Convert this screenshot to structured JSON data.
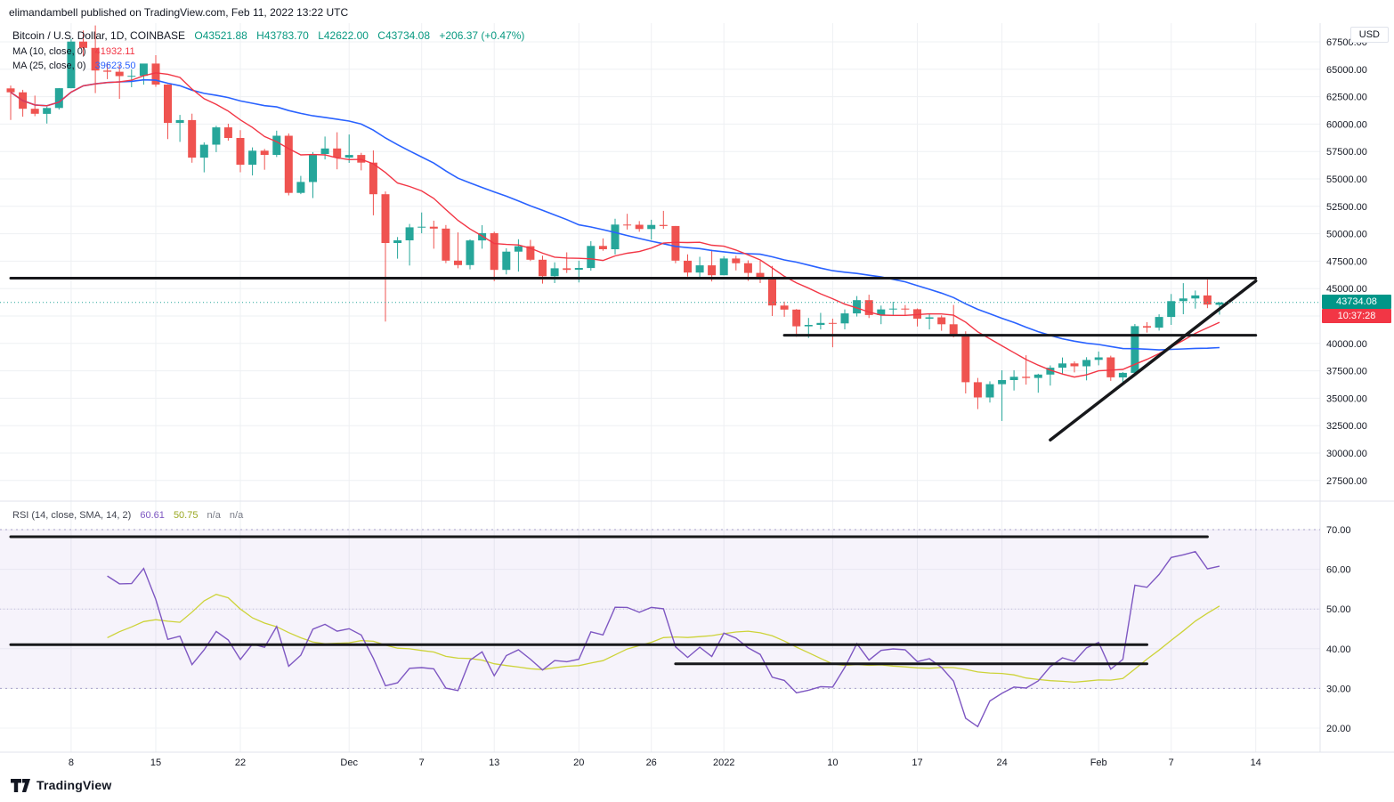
{
  "header": {
    "text": "elimandambell published on TradingView.com, Feb 11, 2022 13:22 UTC"
  },
  "legend": {
    "title": "Bitcoin / U.S. Dollar, 1D, COINBASE",
    "ohlc": [
      "O43521.88",
      "H43783.70",
      "L42622.00",
      "C43734.08",
      "+206.37 (+0.47%)"
    ],
    "ma": [
      {
        "label": "MA (10, close, 0)",
        "value": "41932.11"
      },
      {
        "label": "MA (25, close, 0)",
        "value": "39623.50"
      }
    ],
    "rsi": {
      "label": "RSI (14, close, SMA, 14, 2)",
      "values": [
        "60.61",
        "50.75",
        "n/a",
        "n/a"
      ]
    }
  },
  "price_badge": {
    "price": "43734.08",
    "countdown": "10:37:28",
    "price_bg": "#009688",
    "countdown_bg": "#f23645"
  },
  "currency_label": "USD",
  "footer": {
    "brand": "TradingView"
  },
  "axes": {
    "price_ticks": [
      "67500.00",
      "65000.00",
      "62500.00",
      "60000.00",
      "57500.00",
      "55000.00",
      "52500.00",
      "50000.00",
      "47500.00",
      "45000.00",
      "42500.00",
      "40000.00",
      "37500.00",
      "35000.00",
      "32500.00",
      "30000.00",
      "27500.00"
    ],
    "rsi_ticks": [
      "70.00",
      "60.00",
      "50.00",
      "40.00",
      "30.00",
      "20.00"
    ],
    "time_ticks": [
      {
        "label": "8",
        "date": "2021-11-08"
      },
      {
        "label": "15",
        "date": "2021-11-15"
      },
      {
        "label": "22",
        "date": "2021-11-22"
      },
      {
        "label": "Dec",
        "date": "2021-12-01"
      },
      {
        "label": "7",
        "date": "2021-12-07"
      },
      {
        "label": "13",
        "date": "2021-12-13"
      },
      {
        "label": "20",
        "date": "2021-12-20"
      },
      {
        "label": "26",
        "date": "2021-12-26"
      },
      {
        "label": "2022",
        "date": "2022-01-01"
      },
      {
        "label": "10",
        "date": "2022-01-10"
      },
      {
        "label": "17",
        "date": "2022-01-17"
      },
      {
        "label": "24",
        "date": "2022-01-24"
      },
      {
        "label": "Feb",
        "date": "2022-02-01"
      },
      {
        "label": "7",
        "date": "2022-02-07"
      },
      {
        "label": "14",
        "date": "2022-02-14"
      }
    ]
  },
  "chart_data": {
    "type": "candlestick",
    "symbol": "Bitcoin / U.S. Dollar",
    "exchange": "COINBASE",
    "interval": "1D",
    "price_axis_range": [
      27500,
      67500
    ],
    "rsi_axis_range": [
      20,
      70
    ],
    "up_color": "#26a69a",
    "down_color": "#ef5350",
    "last_close": 43734.08,
    "candles": [
      [
        "2021-11-03",
        63254,
        63516,
        60382,
        62896
      ],
      [
        "2021-11-04",
        62896,
        63123,
        60677,
        61395
      ],
      [
        "2021-11-05",
        61395,
        62595,
        60721,
        60937
      ],
      [
        "2021-11-06",
        60937,
        61590,
        60050,
        61470
      ],
      [
        "2021-11-07",
        61470,
        63286,
        61322,
        63273
      ],
      [
        "2021-11-08",
        63273,
        67789,
        63273,
        67525
      ],
      [
        "2021-11-09",
        67525,
        68524,
        66222,
        66947
      ],
      [
        "2021-11-10",
        66947,
        68990,
        62822,
        64882
      ],
      [
        "2021-11-11",
        64882,
        65590,
        64102,
        64774
      ],
      [
        "2021-11-12",
        64774,
        65450,
        62300,
        64380
      ],
      [
        "2021-11-13",
        64380,
        64985,
        63360,
        64400
      ],
      [
        "2021-11-14",
        64400,
        65495,
        63594,
        65519
      ],
      [
        "2021-11-15",
        65519,
        66280,
        63398,
        63606
      ],
      [
        "2021-11-16",
        63606,
        63617,
        58638,
        60109
      ],
      [
        "2021-11-17",
        60109,
        60840,
        58373,
        60368
      ],
      [
        "2021-11-18",
        60368,
        60948,
        56474,
        56942
      ],
      [
        "2021-11-19",
        56942,
        58335,
        55600,
        58119
      ],
      [
        "2021-11-20",
        58119,
        59845,
        57444,
        59697
      ],
      [
        "2021-11-21",
        59697,
        60029,
        58487,
        58730
      ],
      [
        "2021-11-22",
        58730,
        59444,
        55610,
        56289
      ],
      [
        "2021-11-23",
        56289,
        57875,
        55317,
        57569
      ],
      [
        "2021-11-24",
        57569,
        57735,
        55837,
        57187
      ],
      [
        "2021-11-25",
        57187,
        59398,
        57000,
        58935
      ],
      [
        "2021-11-26",
        58935,
        59150,
        53500,
        53726
      ],
      [
        "2021-11-27",
        53726,
        55280,
        53610,
        54721
      ],
      [
        "2021-11-28",
        54721,
        57445,
        53256,
        57274
      ],
      [
        "2021-11-29",
        57274,
        58865,
        56780,
        57776
      ],
      [
        "2021-11-30",
        57776,
        59250,
        55875,
        56950
      ],
      [
        "2021-12-01",
        56950,
        59053,
        56458,
        57184
      ],
      [
        "2021-12-02",
        57184,
        57375,
        55777,
        56485
      ],
      [
        "2021-12-03",
        56485,
        57600,
        51680,
        53601
      ],
      [
        "2021-12-04",
        53601,
        53859,
        42000,
        49152
      ],
      [
        "2021-12-05",
        49152,
        49699,
        47727,
        49396
      ],
      [
        "2021-12-06",
        49396,
        50891,
        47100,
        50582
      ],
      [
        "2021-12-07",
        50582,
        51936,
        50039,
        50639
      ],
      [
        "2021-12-08",
        50639,
        51190,
        48638,
        50471
      ],
      [
        "2021-12-09",
        50471,
        50797,
        47320,
        47545
      ],
      [
        "2021-12-10",
        47545,
        50125,
        46852,
        47140
      ],
      [
        "2021-12-11",
        47140,
        49485,
        46751,
        49389
      ],
      [
        "2021-12-12",
        49389,
        50777,
        48638,
        50053
      ],
      [
        "2021-12-13",
        50053,
        50189,
        45672,
        46702
      ],
      [
        "2021-12-14",
        46702,
        48674,
        46290,
        48368
      ],
      [
        "2021-12-15",
        48368,
        49500,
        46547,
        48864
      ],
      [
        "2021-12-16",
        48864,
        49436,
        47511,
        47632
      ],
      [
        "2021-12-17",
        47632,
        47995,
        45456,
        46131
      ],
      [
        "2021-12-18",
        46131,
        47392,
        45500,
        46854
      ],
      [
        "2021-12-19",
        46854,
        48300,
        46424,
        46707
      ],
      [
        "2021-12-20",
        46707,
        47537,
        45558,
        46880
      ],
      [
        "2021-12-21",
        46880,
        49328,
        46630,
        48889
      ],
      [
        "2021-12-22",
        48889,
        49576,
        48450,
        48588
      ],
      [
        "2021-12-23",
        48588,
        51375,
        48108,
        50838
      ],
      [
        "2021-12-24",
        50838,
        51815,
        50384,
        50820
      ],
      [
        "2021-12-25",
        50820,
        51154,
        50190,
        50429
      ],
      [
        "2021-12-26",
        50429,
        51278,
        49460,
        50801
      ],
      [
        "2021-12-27",
        50801,
        52088,
        50449,
        50703
      ],
      [
        "2021-12-28",
        50703,
        50704,
        47313,
        47543
      ],
      [
        "2021-12-29",
        47543,
        48121,
        46096,
        46464
      ],
      [
        "2021-12-30",
        46464,
        47900,
        45900,
        47120
      ],
      [
        "2021-12-31",
        47120,
        48548,
        45650,
        46216
      ],
      [
        "2022-01-01",
        46216,
        47954,
        46208,
        47742
      ],
      [
        "2022-01-02",
        47742,
        47990,
        46654,
        47311
      ],
      [
        "2022-01-03",
        47311,
        47570,
        45700,
        46430
      ],
      [
        "2022-01-04",
        46430,
        47532,
        45500,
        45832
      ],
      [
        "2022-01-05",
        45832,
        47070,
        42500,
        43451
      ],
      [
        "2022-01-06",
        43451,
        43816,
        42430,
        43082
      ],
      [
        "2022-01-07",
        43082,
        43130,
        40610,
        41557
      ],
      [
        "2022-01-08",
        41557,
        42320,
        40500,
        41689
      ],
      [
        "2022-01-09",
        41689,
        42786,
        41272,
        41864
      ],
      [
        "2022-01-10",
        41864,
        42255,
        39650,
        41822
      ],
      [
        "2022-01-11",
        41822,
        43100,
        41280,
        42735
      ],
      [
        "2022-01-12",
        42735,
        44322,
        42450,
        43948
      ],
      [
        "2022-01-13",
        43948,
        44436,
        42311,
        42591
      ],
      [
        "2022-01-14",
        42591,
        43450,
        41751,
        43099
      ],
      [
        "2022-01-15",
        43099,
        43800,
        42586,
        43177
      ],
      [
        "2022-01-16",
        43177,
        43499,
        42600,
        43113
      ],
      [
        "2022-01-17",
        43113,
        43193,
        41550,
        42250
      ],
      [
        "2022-01-18",
        42250,
        42690,
        41276,
        42375
      ],
      [
        "2022-01-19",
        42375,
        42554,
        41152,
        41744
      ],
      [
        "2022-01-20",
        41744,
        43505,
        40555,
        40680
      ],
      [
        "2022-01-21",
        40680,
        41100,
        35440,
        36457
      ],
      [
        "2022-01-22",
        36457,
        36850,
        34008,
        35071
      ],
      [
        "2022-01-23",
        35071,
        36540,
        34601,
        36280
      ],
      [
        "2022-01-24",
        36280,
        37550,
        32933,
        36654
      ],
      [
        "2022-01-25",
        36654,
        37545,
        35704,
        36954
      ],
      [
        "2022-01-26",
        36954,
        38920,
        36241,
        36852
      ],
      [
        "2022-01-27",
        36852,
        37234,
        35507,
        37160
      ],
      [
        "2022-01-28",
        37160,
        37999,
        36155,
        37784
      ],
      [
        "2022-01-29",
        37784,
        38720,
        37268,
        38175
      ],
      [
        "2022-01-30",
        38175,
        38359,
        37351,
        37917
      ],
      [
        "2022-01-31",
        37917,
        38744,
        36632,
        38491
      ],
      [
        "2022-02-01",
        38491,
        39265,
        38000,
        38722
      ],
      [
        "2022-02-02",
        38722,
        38876,
        36586,
        36905
      ],
      [
        "2022-02-03",
        36905,
        37381,
        36250,
        37316
      ],
      [
        "2022-02-04",
        37316,
        41772,
        37026,
        41574
      ],
      [
        "2022-02-05",
        41574,
        41938,
        40994,
        41441
      ],
      [
        "2022-02-06",
        41441,
        42656,
        41168,
        42412
      ],
      [
        "2022-02-07",
        42412,
        44501,
        41688,
        43854
      ],
      [
        "2022-02-08",
        43854,
        45492,
        42666,
        44096
      ],
      [
        "2022-02-09",
        44096,
        44825,
        43174,
        44372
      ],
      [
        "2022-02-10",
        44372,
        45821,
        43212,
        43532
      ],
      [
        "2022-02-11",
        43521.88,
        43783.7,
        42622.0,
        43734.08
      ]
    ],
    "overlays": [
      {
        "name": "MA 10",
        "period": 10,
        "color": "#f23645",
        "last_value": 41932.11
      },
      {
        "name": "MA 25",
        "period": 25,
        "color": "#2962ff",
        "last_value": 39623.5
      }
    ],
    "rsi": {
      "period": 14,
      "smoothing": "SMA 14",
      "line_color": "#7e57c2",
      "sma_color": "#cdd339",
      "band_upper": 70,
      "band_lower": 30,
      "band_mid": 50,
      "last_value": 60.61,
      "last_sma": 50.75
    },
    "annotations": {
      "price_pane": [
        {
          "type": "horizontal",
          "price": 45950,
          "from": "2021-11-03",
          "to": "2022-02-14"
        },
        {
          "type": "horizontal",
          "price": 40750,
          "from": "2022-01-06",
          "to": "2022-02-14"
        },
        {
          "type": "trend",
          "from": "2022-01-28",
          "price_from": 31200,
          "to": "2022-02-14",
          "price_to": 45700
        }
      ],
      "rsi_pane": [
        {
          "type": "horizontal",
          "value": 68.2,
          "from": "2021-11-03",
          "to": "2022-02-10"
        },
        {
          "type": "horizontal",
          "value": 41.0,
          "from": "2021-11-03",
          "to": "2022-02-05"
        },
        {
          "type": "horizontal",
          "value": 36.2,
          "from": "2021-12-28",
          "to": "2022-02-05"
        }
      ]
    }
  }
}
